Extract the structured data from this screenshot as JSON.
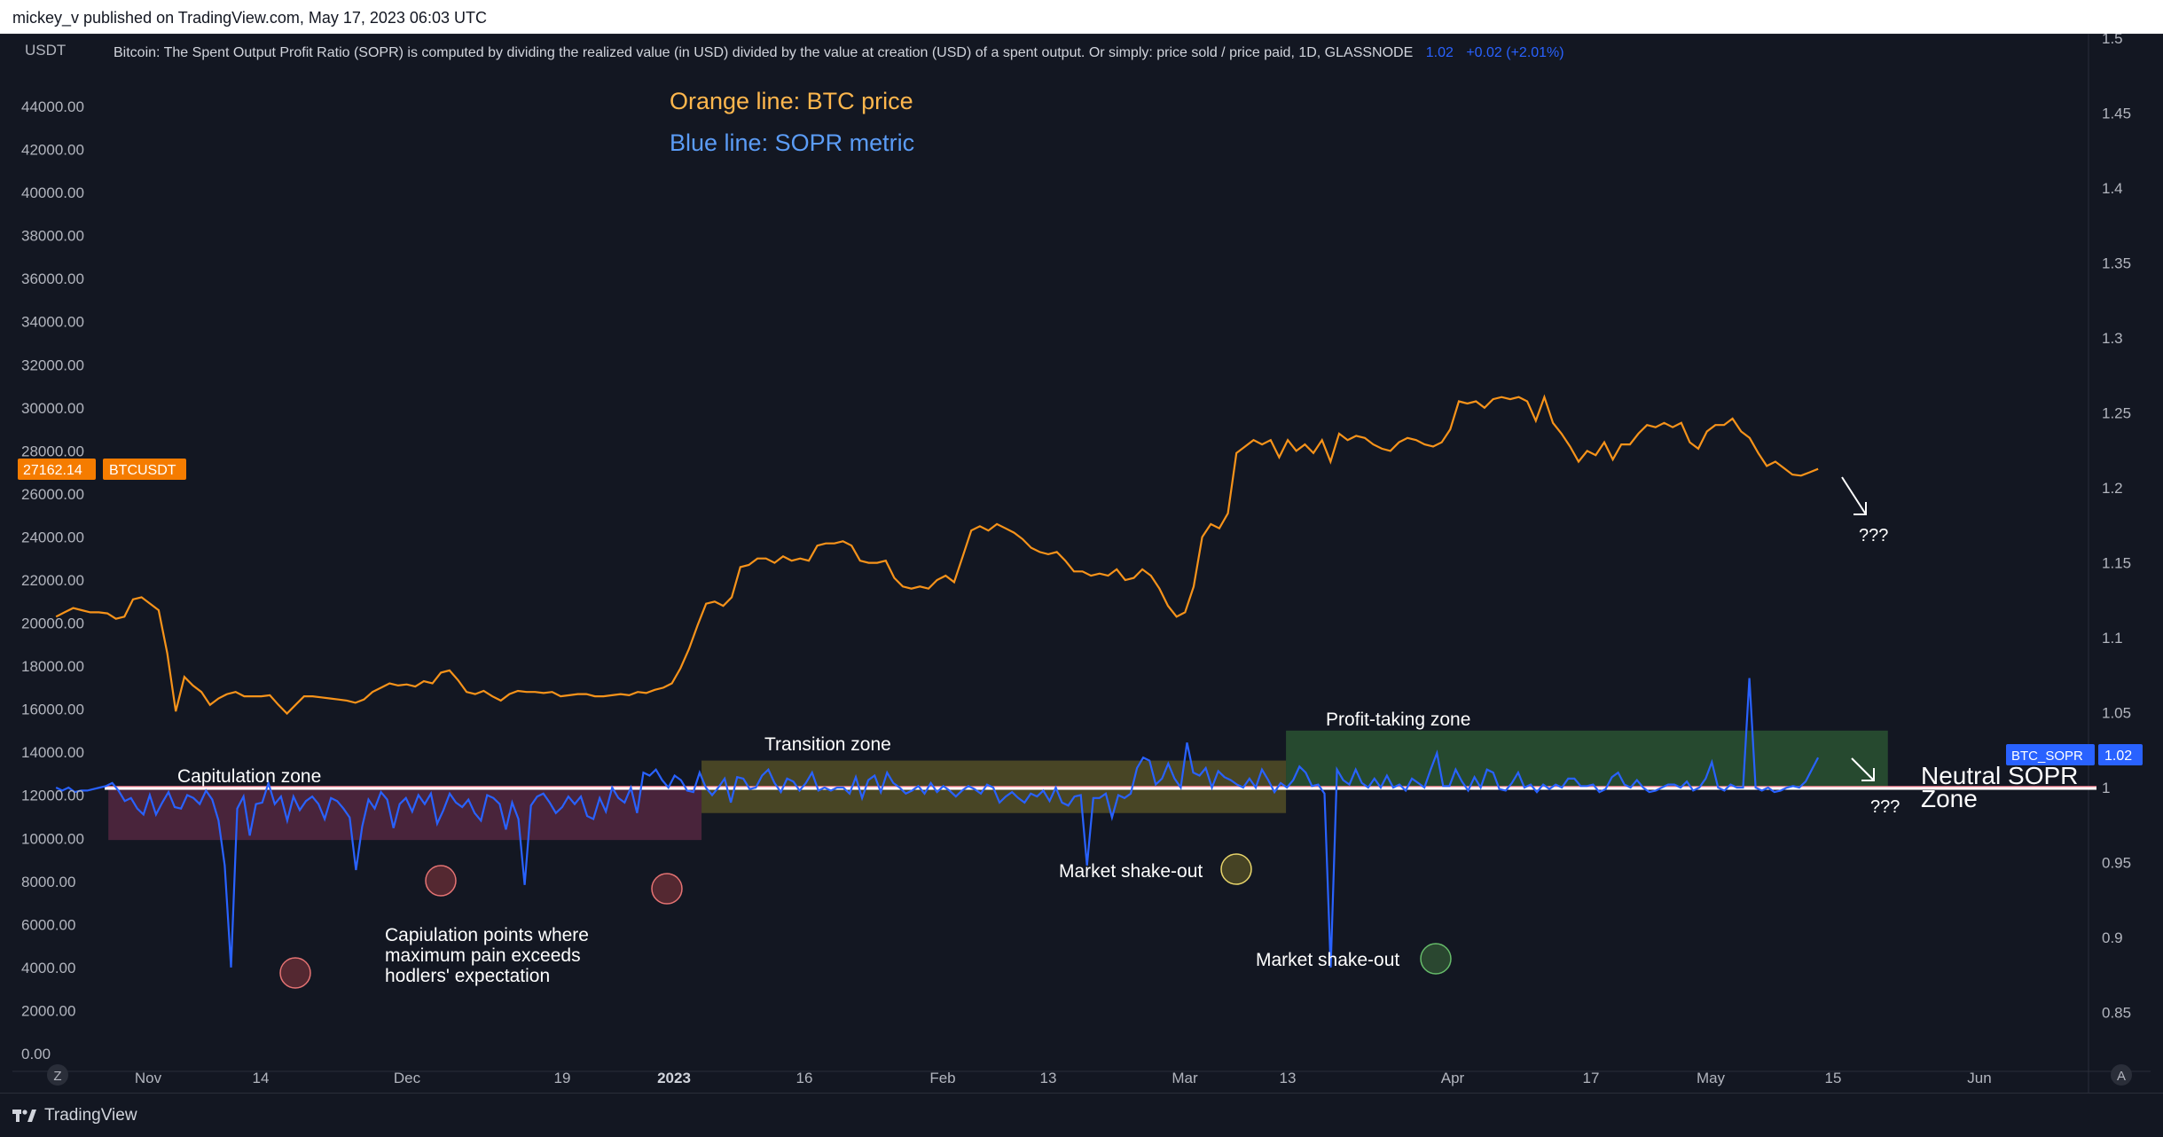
{
  "header": {
    "publisher_line": "mickey_v published on TradingView.com, May 17, 2023 06:03 UTC"
  },
  "indicator_legend": {
    "text": "Bitcoin: The Spent Output Profit Ratio (SOPR) is computed by dividing the realized value (in USD) divided by the value at creation (USD) of a spent output. Or simply: price sold / price paid, 1D, GLASSNODE",
    "value": "1.02",
    "change": "+0.02 (+2.01%)"
  },
  "left_axis": {
    "unit": "USDT",
    "ticks": [
      "44000.00",
      "42000.00",
      "40000.00",
      "38000.00",
      "36000.00",
      "34000.00",
      "32000.00",
      "30000.00",
      "28000.00",
      "26000.00",
      "24000.00",
      "22000.00",
      "20000.00",
      "18000.00",
      "16000.00",
      "14000.00",
      "12000.00",
      "10000.00",
      "8000.00",
      "6000.00",
      "4000.00",
      "2000.00",
      "0.00"
    ],
    "price_badge": "27162.14",
    "price_badge_label": "BTCUSDT"
  },
  "right_axis": {
    "ticks": [
      "1.5",
      "1.45",
      "1.4",
      "1.35",
      "1.3",
      "1.25",
      "1.2",
      "1.15",
      "1.1",
      "1.05",
      "1",
      "0.95",
      "0.9",
      "0.85"
    ],
    "sopr_badge_label": "BTC_SOPR",
    "sopr_badge_value": "1.02"
  },
  "time_axis": {
    "labels": [
      "Nov",
      "14",
      "Dec",
      "19",
      "2023",
      "16",
      "Feb",
      "13",
      "Mar",
      "13",
      "Apr",
      "17",
      "May",
      "15",
      "Jun"
    ],
    "left_button": "Z",
    "right_button": "A"
  },
  "annotations": {
    "orange_legend": "Orange line: BTC price",
    "blue_legend": "Blue line: SOPR metric",
    "capitulation_zone": "Capitulation zone",
    "transition_zone": "Transition zone",
    "profit_taking_zone": "Profit-taking zone",
    "capitulation_points": [
      "Capiulation points where",
      "maximum pain exceeds",
      "hodlers' expectation"
    ],
    "shakeout_1": "Market shake-out",
    "shakeout_2": "Market shake-out",
    "neutral_zone": [
      "Neutral SOPR",
      "Zone"
    ],
    "question_upper": "???",
    "question_lower": "???"
  },
  "colors": {
    "btc_line": "#f7931a",
    "sopr_line": "#2962ff",
    "background": "#131722",
    "capitulation_zone": "#5c2a44",
    "transition_zone": "#5b5527",
    "profit_zone": "#2e5b34"
  },
  "brand": {
    "name": "TradingView"
  },
  "chart_data": {
    "type": "line",
    "x_start": "2022-10-26",
    "x_end": "2023-05-16",
    "xlim": [
      "2022-10-21",
      "2023-06-16"
    ],
    "series": [
      {
        "name": "BTCUSDT",
        "axis": "left",
        "ylim": [
          0,
          46000
        ],
        "values": [
          20300,
          20500,
          20700,
          20600,
          20500,
          20500,
          20450,
          20200,
          20300,
          21100,
          21200,
          20900,
          20600,
          18600,
          15900,
          17500,
          17100,
          16800,
          16200,
          16500,
          16700,
          16800,
          16600,
          16600,
          16600,
          16650,
          16200,
          15800,
          16200,
          16600,
          16600,
          16550,
          16500,
          16450,
          16400,
          16300,
          16450,
          16800,
          17000,
          17200,
          17100,
          17150,
          17050,
          17300,
          17200,
          17700,
          17800,
          17350,
          16800,
          16700,
          16850,
          16600,
          16400,
          16700,
          16850,
          16800,
          16800,
          16750,
          16800,
          16600,
          16650,
          16700,
          16700,
          16600,
          16600,
          16650,
          16700,
          16650,
          16800,
          16750,
          16900,
          17000,
          17200,
          17900,
          18800,
          19900,
          20900,
          21000,
          20800,
          21200,
          22600,
          22700,
          23000,
          23000,
          22800,
          23100,
          22900,
          23000,
          22900,
          23600,
          23700,
          23700,
          23800,
          23600,
          22900,
          22800,
          22800,
          22900,
          22100,
          21700,
          21600,
          21700,
          21600,
          22000,
          22200,
          21900,
          23100,
          24300,
          24500,
          24300,
          24600,
          24400,
          24200,
          23900,
          23500,
          23300,
          23200,
          23300,
          22900,
          22400,
          22400,
          22200,
          22300,
          22200,
          22500,
          22000,
          22100,
          22500,
          22200,
          21600,
          20800,
          20300,
          20500,
          21700,
          24000,
          24600,
          24400,
          25100,
          27900,
          28200,
          28500,
          28300,
          28500,
          27700,
          28500,
          28000,
          28300,
          27900,
          28500,
          27500,
          28800,
          28500,
          28700,
          28600,
          28300,
          28100,
          28000,
          28400,
          28600,
          28500,
          28300,
          28200,
          28400,
          29000,
          30300,
          30200,
          30300,
          30000,
          30400,
          30500,
          30400,
          30500,
          30300,
          29400,
          30500,
          29300,
          28800,
          28200,
          27500,
          28000,
          27800,
          28400,
          27600,
          28300,
          28300,
          28800,
          29200,
          29100,
          29300,
          29100,
          29300,
          28400,
          28100,
          28900,
          29200,
          29200,
          29500,
          28900,
          28600,
          27900,
          27300,
          27500,
          27200,
          26900,
          26850,
          27000,
          27162
        ]
      },
      {
        "name": "BTC_SOPR",
        "axis": "right",
        "ylim": [
          0.83,
          1.5
        ],
        "values": [
          1.0,
          0.998,
          1.0,
          0.997,
          0.998,
          0.998,
          0.999,
          1.0,
          1.001,
          1.003,
          0.998,
          0.991,
          0.993,
          0.986,
          0.982,
          0.995,
          0.982,
          0.99,
          0.997,
          0.987,
          0.986,
          0.995,
          0.993,
          0.989,
          0.998,
          0.992,
          0.978,
          0.948,
          0.88,
          0.986,
          0.994,
          0.968,
          0.989,
          0.99,
          1.003,
          0.989,
          0.994,
          0.978,
          0.994,
          0.985,
          0.991,
          0.994,
          0.989,
          0.979,
          0.993,
          0.991,
          0.986,
          0.98,
          0.945,
          0.974,
          0.992,
          0.986,
          0.997,
          0.992,
          0.973,
          0.989,
          0.993,
          0.984,
          0.995,
          0.989,
          0.996,
          0.976,
          0.985,
          0.996,
          0.99,
          0.987,
          0.992,
          0.983,
          0.978,
          0.995,
          0.993,
          0.989,
          0.972,
          0.99,
          0.979,
          0.935,
          0.988,
          0.994,
          0.996,
          0.99,
          0.983,
          0.987,
          0.994,
          0.989,
          0.994,
          0.981,
          0.979,
          0.993,
          0.984,
          1.0,
          0.993,
          0.99,
          1.0,
          0.983,
          1.01,
          1.008,
          1.012,
          1.005,
          1.0,
          1.008,
          1.005,
          0.998,
          0.997,
          1.01,
          1.0,
          0.995,
          1.0,
          1.006,
          0.99,
          1.007,
          1.006,
          0.999,
          1.0,
          1.008,
          1.012,
          1.003,
          0.997,
          1.006,
          1.004,
          0.998,
          1.003,
          1.01,
          0.998,
          1.0,
          0.998,
          1.0,
          1.0,
          0.996,
          1.007,
          0.993,
          1.005,
          1.008,
          0.997,
          1.01,
          1.003,
          1.0,
          0.996,
          0.998,
          1.001,
          0.996,
          1.003,
          0.997,
          1.001,
          0.998,
          0.994,
          0.998,
          1.001,
          0.999,
          0.996,
          1.002,
          1.0,
          0.99,
          0.994,
          0.997,
          0.993,
          0.99,
          0.996,
          0.994,
          0.998,
          0.991,
          1.0,
          0.99,
          0.988,
          0.994,
          0.995,
          0.948,
          0.993,
          0.993,
          0.996,
          0.98,
          0.995,
          0.993,
          0.996,
          1.013,
          1.02,
          1.018,
          1.002,
          1.006,
          1.016,
          1.006,
          1.0,
          1.03,
          1.01,
          1.008,
          1.013,
          1.0,
          1.011,
          1.007,
          1.005,
          1.002,
          1.0,
          1.006,
          1.0,
          1.012,
          1.005,
          0.997,
          1.003,
          1.0,
          1.005,
          1.014,
          1.01,
          1.001,
          1.002,
          0.996,
          0.88,
          1.012,
          1.005,
          1.002,
          1.012,
          1.003,
          1.0,
          1.006,
          1.0,
          1.008,
          1.0,
          1.002,
          0.998,
          1.006,
          1.003,
          1.0,
          1.012,
          1.023,
          1.001,
          1.001,
          1.012,
          1.004,
          0.998,
          1.007,
          1.0,
          1.012,
          1.01,
          0.999,
          0.998,
          1.003,
          1.01,
          1.0,
          1.002,
          0.997,
          1.002,
          0.999,
          1.002,
          1.0,
          1.006,
          1.006,
          1.001,
          1.001,
          1.002,
          0.997,
          0.999,
          1.007,
          1.01,
          1.002,
          1.0,
          1.005,
          1.0,
          0.997,
          0.998,
          1.0,
          1.002,
          1.002,
          1.0,
          1.004,
          0.998,
          1.0,
          1.006,
          1.017,
          1.0,
          0.998,
          1.002,
          1.0,
          1.0,
          1.073,
          1.0,
          0.998,
          1.0,
          0.997,
          0.998,
          1.0,
          1.001,
          1.0,
          1.004,
          1.012,
          1.02
        ]
      }
    ],
    "reference_line": {
      "axis": "right",
      "value": 1.0
    },
    "zones": [
      {
        "label": "Capitulation zone",
        "x": [
          "2022-11-01",
          "2023-01-08"
        ],
        "y": [
          0.965,
          1.0
        ]
      },
      {
        "label": "Transition zone",
        "x": [
          "2023-01-08",
          "2023-03-16"
        ],
        "y": [
          0.983,
          1.018
        ]
      },
      {
        "label": "Profit-taking zone",
        "x": [
          "2023-03-16",
          "2023-05-24"
        ],
        "y": [
          1.0,
          1.038
        ]
      }
    ],
    "grid": false,
    "legend": "top-left"
  }
}
